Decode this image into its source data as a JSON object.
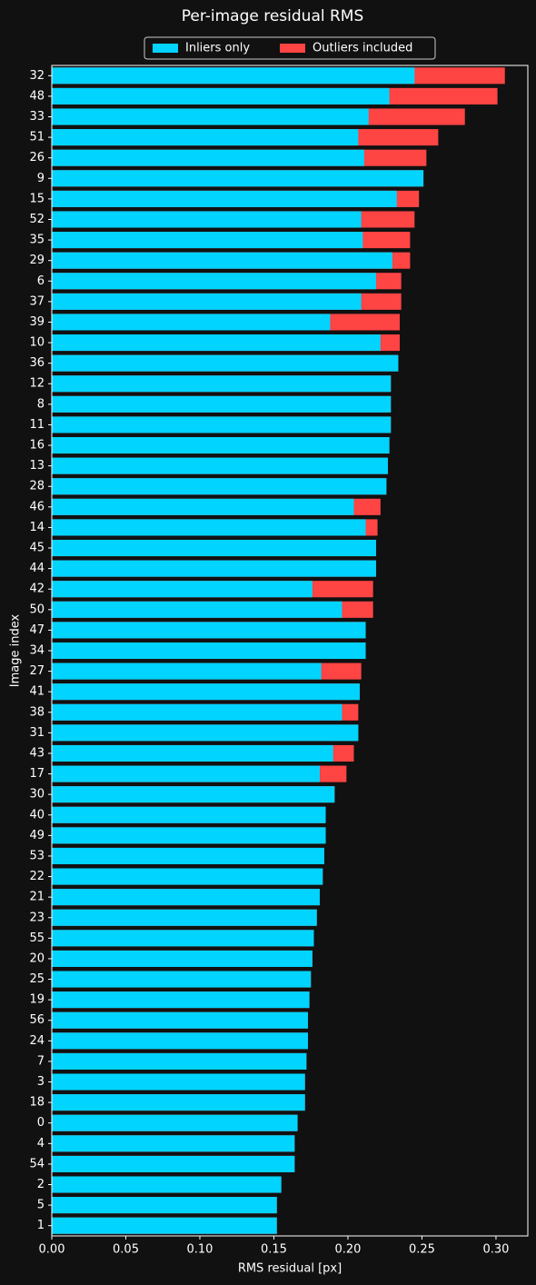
{
  "chart_data": {
    "type": "barh_overlay",
    "title": "Per-image residual RMS",
    "xlabel": "RMS residual [px]",
    "ylabel": "Image index",
    "legend": "upper center",
    "categories": [
      "32",
      "48",
      "33",
      "51",
      "26",
      "9",
      "15",
      "52",
      "35",
      "29",
      "6",
      "37",
      "39",
      "10",
      "36",
      "12",
      "8",
      "11",
      "16",
      "13",
      "28",
      "46",
      "14",
      "45",
      "44",
      "42",
      "50",
      "47",
      "34",
      "27",
      "41",
      "38",
      "31",
      "43",
      "17",
      "30",
      "40",
      "49",
      "53",
      "22",
      "21",
      "23",
      "55",
      "20",
      "25",
      "19",
      "56",
      "24",
      "7",
      "3",
      "18",
      "0",
      "4",
      "54",
      "2",
      "5",
      "1"
    ],
    "series": [
      {
        "name": "Outliers included",
        "color": "#ff4444",
        "values": [
          0.306,
          0.301,
          0.279,
          0.261,
          0.253,
          0.251,
          0.248,
          0.245,
          0.242,
          0.242,
          0.236,
          0.236,
          0.235,
          0.235,
          0.234,
          0.229,
          0.229,
          0.229,
          0.228,
          0.227,
          0.226,
          0.222,
          0.22,
          0.219,
          0.219,
          0.217,
          0.217,
          0.212,
          0.212,
          0.209,
          0.208,
          0.207,
          0.207,
          0.204,
          0.199,
          0.191,
          0.185,
          0.185,
          0.184,
          0.183,
          0.181,
          0.179,
          0.177,
          0.176,
          0.175,
          0.174,
          0.173,
          0.173,
          0.172,
          0.171,
          0.171,
          0.166,
          0.164,
          0.164,
          0.155,
          0.152,
          0.152
        ]
      },
      {
        "name": "Inliers only",
        "color": "#00d4ff",
        "values": [
          0.245,
          0.228,
          0.214,
          0.207,
          0.211,
          0.251,
          0.233,
          0.209,
          0.21,
          0.23,
          0.219,
          0.209,
          0.188,
          0.222,
          0.234,
          0.229,
          0.229,
          0.229,
          0.228,
          0.227,
          0.226,
          0.204,
          0.212,
          0.219,
          0.219,
          0.176,
          0.196,
          0.212,
          0.212,
          0.182,
          0.208,
          0.196,
          0.207,
          0.19,
          0.181,
          0.191,
          0.185,
          0.185,
          0.184,
          0.183,
          0.181,
          0.179,
          0.177,
          0.176,
          0.175,
          0.174,
          0.173,
          0.173,
          0.172,
          0.171,
          0.171,
          0.166,
          0.164,
          0.164,
          0.155,
          0.152,
          0.152
        ]
      }
    ],
    "xlim": [
      0,
      0.3215
    ],
    "xticks": [
      {
        "value": 0,
        "label": "0.00"
      },
      {
        "value": 0.05,
        "label": "0.05"
      },
      {
        "value": 0.1,
        "label": "0.10"
      },
      {
        "value": 0.15,
        "label": "0.15"
      },
      {
        "value": 0.2,
        "label": "0.20"
      },
      {
        "value": 0.25,
        "label": "0.25"
      },
      {
        "value": 0.3,
        "label": "0.30"
      }
    ]
  }
}
